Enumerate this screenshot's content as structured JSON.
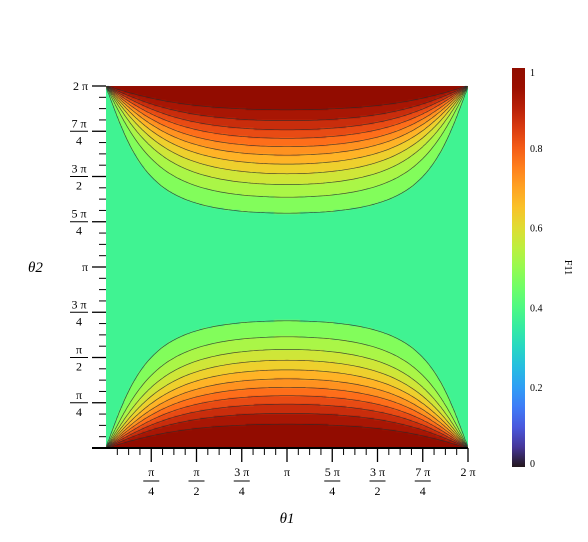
{
  "chart_data": {
    "type": "heatmap",
    "subtype": "filled-contour",
    "xlabel": "θ1",
    "ylabel": "θ2",
    "xlim": [
      0,
      6.283185307
    ],
    "ylim": [
      0,
      6.283185307
    ],
    "x_ticks": [
      {
        "value": 0.785398,
        "num": "π",
        "den": "4"
      },
      {
        "value": 1.570796,
        "num": "π",
        "den": "2"
      },
      {
        "value": 2.356194,
        "num": "3 π",
        "den": "4"
      },
      {
        "value": 3.141593,
        "label": "π"
      },
      {
        "value": 3.926991,
        "num": "5 π",
        "den": "4"
      },
      {
        "value": 4.712389,
        "num": "3 π",
        "den": "2"
      },
      {
        "value": 5.497787,
        "num": "7 π",
        "den": "4"
      },
      {
        "value": 6.283185,
        "label": "2 π"
      }
    ],
    "y_ticks": [
      {
        "value": 0.785398,
        "num": "π",
        "den": "4"
      },
      {
        "value": 1.570796,
        "num": "π",
        "den": "2"
      },
      {
        "value": 2.356194,
        "num": "3 π",
        "den": "4"
      },
      {
        "value": 3.141593,
        "label": "π"
      },
      {
        "value": 3.926991,
        "num": "5 π",
        "den": "4"
      },
      {
        "value": 4.712389,
        "num": "3 π",
        "den": "2"
      },
      {
        "value": 5.497787,
        "num": "7 π",
        "den": "4"
      },
      {
        "value": 6.283185,
        "label": "2 π"
      }
    ],
    "minor_ticks_per_major": 4,
    "colorbar": {
      "label": "F11",
      "range": [
        0,
        1
      ],
      "ticks": [
        {
          "value": 0,
          "label": "0"
        },
        {
          "value": 0.2,
          "label": "0.2"
        },
        {
          "value": 0.4,
          "label": "0.4"
        },
        {
          "value": 0.6,
          "label": "0.6"
        },
        {
          "value": 0.8,
          "label": "0.8"
        },
        {
          "value": 1,
          "label": "1"
        }
      ],
      "colormap": "turbo"
    },
    "contour_levels": [
      0.1,
      0.2,
      0.3,
      0.45,
      0.5,
      0.55,
      0.6,
      0.65,
      0.7,
      0.75,
      0.8,
      0.85,
      0.9,
      0.95
    ],
    "field": "F11(θ1, θ2)",
    "grid": false
  }
}
